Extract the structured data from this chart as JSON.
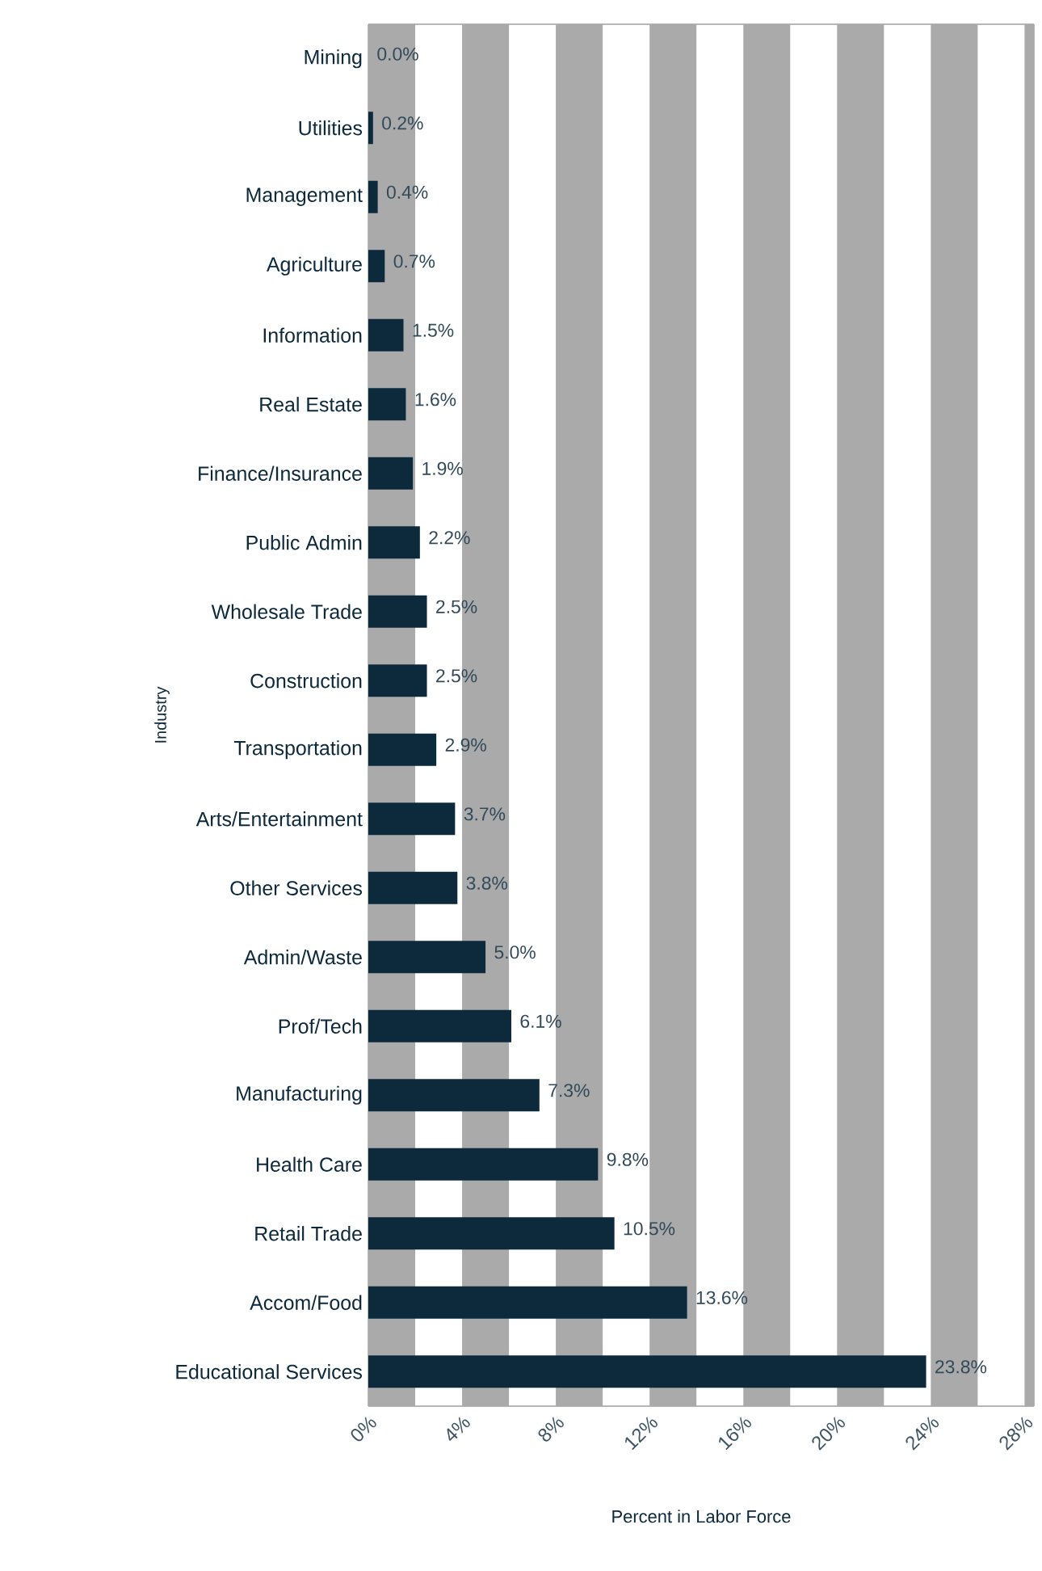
{
  "chart_data": {
    "type": "bar",
    "orientation": "horizontal",
    "xlabel": "Percent in Labor Force",
    "ylabel": "Industry",
    "categories": [
      "Mining",
      "Utilities",
      "Management",
      "Agriculture",
      "Information",
      "Real Estate",
      "Finance/Insurance",
      "Public Admin",
      "Wholesale Trade",
      "Construction",
      "Transportation",
      "Arts/Entertainment",
      "Other Services",
      "Admin/Waste",
      "Prof/Tech",
      "Manufacturing",
      "Health Care",
      "Retail Trade",
      "Accom/Food",
      "Educational Services"
    ],
    "values": [
      0.0,
      0.2,
      0.4,
      0.7,
      1.5,
      1.6,
      1.9,
      2.2,
      2.5,
      2.5,
      2.9,
      3.7,
      3.8,
      5.0,
      6.1,
      7.3,
      9.8,
      10.5,
      13.6,
      23.8
    ],
    "value_labels": [
      "0.0%",
      "0.2%",
      "0.4%",
      "0.7%",
      "1.5%",
      "1.6%",
      "1.9%",
      "2.2%",
      "2.5%",
      "2.5%",
      "2.9%",
      "3.7%",
      "3.8%",
      "5.0%",
      "6.1%",
      "7.3%",
      "9.8%",
      "10.5%",
      "13.6%",
      "23.8%"
    ],
    "color": "#0d2a3d",
    "xlim": [
      0,
      28.4
    ],
    "xticks": [
      {
        "value": 0,
        "label": "0%"
      },
      {
        "value": 4,
        "label": "4%"
      },
      {
        "value": 8,
        "label": "8%"
      },
      {
        "value": 12,
        "label": "12%"
      },
      {
        "value": 16,
        "label": "16%"
      },
      {
        "value": 20,
        "label": "20%"
      },
      {
        "value": 24,
        "label": "24%"
      },
      {
        "value": 28,
        "label": "28%"
      }
    ],
    "bands": [
      {
        "axis": "x",
        "from": 0,
        "to": 2,
        "color": "#aaaaaa"
      },
      {
        "axis": "x",
        "from": 4,
        "to": 6,
        "color": "#aaaaaa"
      },
      {
        "axis": "x",
        "from": 8,
        "to": 10,
        "color": "#aaaaaa"
      },
      {
        "axis": "x",
        "from": 12,
        "to": 14,
        "color": "#aaaaaa"
      },
      {
        "axis": "x",
        "from": 16,
        "to": 18,
        "color": "#aaaaaa"
      },
      {
        "axis": "x",
        "from": 20,
        "to": 22,
        "color": "#aaaaaa"
      },
      {
        "axis": "x",
        "from": 24,
        "to": 26,
        "color": "#aaaaaa"
      },
      {
        "axis": "x",
        "from": 28,
        "to": 28.4,
        "color": "#aaaaaa"
      }
    ],
    "grid": false
  }
}
